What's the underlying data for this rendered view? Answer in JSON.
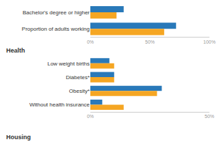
{
  "chart_data": [
    {
      "type": "bar",
      "orientation": "horizontal",
      "categories": [
        "Bachelor's degree or higher",
        "Proportion of adults working"
      ],
      "series": [
        {
          "color": "#2979b9",
          "values": [
            28,
            72
          ]
        },
        {
          "color": "#f5a623",
          "values": [
            22,
            62
          ]
        }
      ],
      "xlim": [
        0,
        100
      ],
      "xticks": [
        {
          "value": 0,
          "label": "0%"
        },
        {
          "value": 50,
          "label": "50%"
        },
        {
          "value": 100,
          "label": "100%"
        }
      ]
    },
    {
      "type": "bar",
      "orientation": "horizontal",
      "title": "Health",
      "categories": [
        "Low weight births",
        "Diabetes*",
        "Obesity*",
        "Without health insurance"
      ],
      "series": [
        {
          "color": "#2979b9",
          "values": [
            8,
            10,
            30,
            5
          ]
        },
        {
          "color": "#f5a623",
          "values": [
            10,
            10,
            28,
            14
          ]
        }
      ],
      "xlim": [
        0,
        50
      ],
      "xticks": [
        {
          "value": 0,
          "label": "0%"
        },
        {
          "value": 50,
          "label": "50%"
        }
      ],
      "annotations": [
        {
          "text": "Housing"
        }
      ]
    }
  ]
}
